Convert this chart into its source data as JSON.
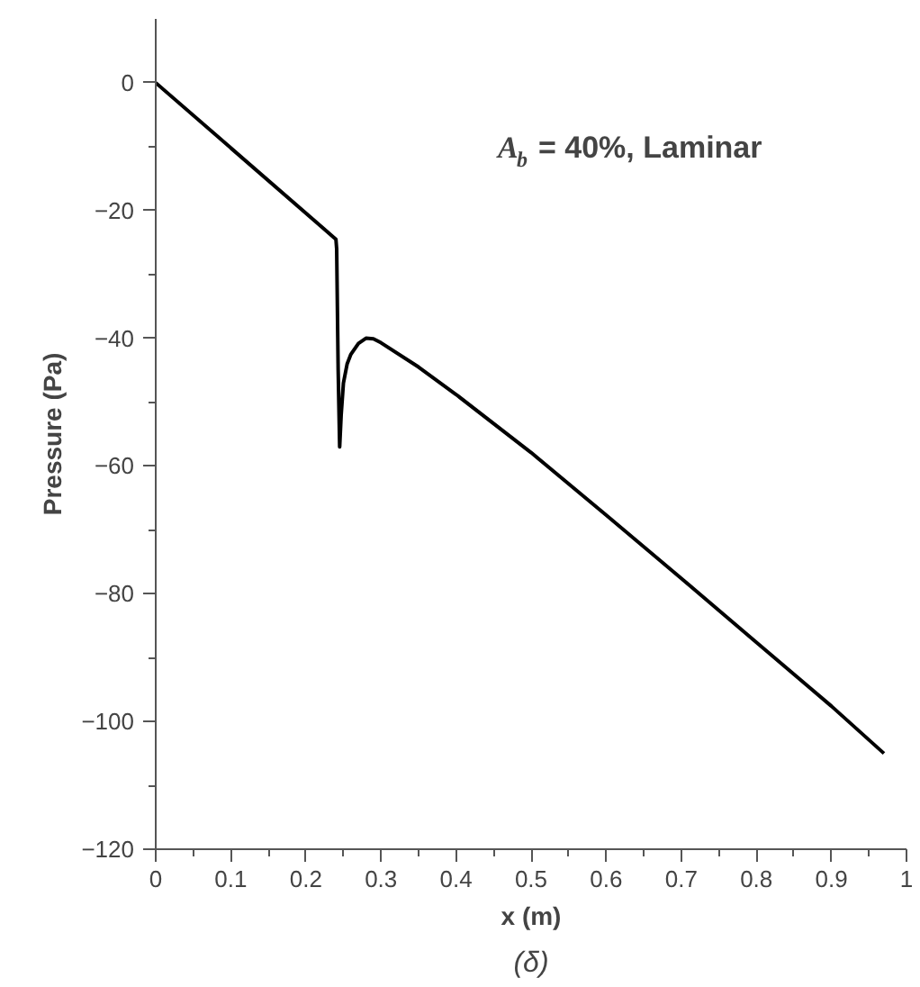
{
  "chart_data": {
    "type": "line",
    "xlabel": "x (m)",
    "ylabel": "Pressure (Pa)",
    "annotations": [
      "A$_{b}$ = 40%, Laminar",
      "(δ)"
    ],
    "x": [
      0,
      0.24,
      0.241,
      0.243,
      0.245,
      0.247,
      0.25,
      0.255,
      0.26,
      0.27,
      0.28,
      0.29,
      0.3,
      0.35,
      0.4,
      0.5,
      0.6,
      0.7,
      0.8,
      0.9,
      0.97
    ],
    "series": [
      {
        "color": "#000000",
        "values": [
          0,
          -24.5,
          -26,
          -45,
          -57,
          -52,
          -47,
          -44,
          -42.5,
          -40.8,
          -40,
          -40.1,
          -40.7,
          -44.5,
          -48.8,
          -57.9,
          -67.7,
          -77.6,
          -87.6,
          -97.6,
          -105
        ]
      }
    ],
    "xlim": [
      0,
      1
    ],
    "ylim": [
      -120,
      10
    ],
    "xticks": [
      0,
      0.1,
      0.2,
      0.3,
      0.4,
      0.5,
      0.6,
      0.7,
      0.8,
      0.9,
      1
    ],
    "yticks": [
      -120,
      -100,
      -80,
      -60,
      -40,
      -20,
      0
    ],
    "grid": false,
    "marker": "none",
    "line_style": "solid"
  }
}
